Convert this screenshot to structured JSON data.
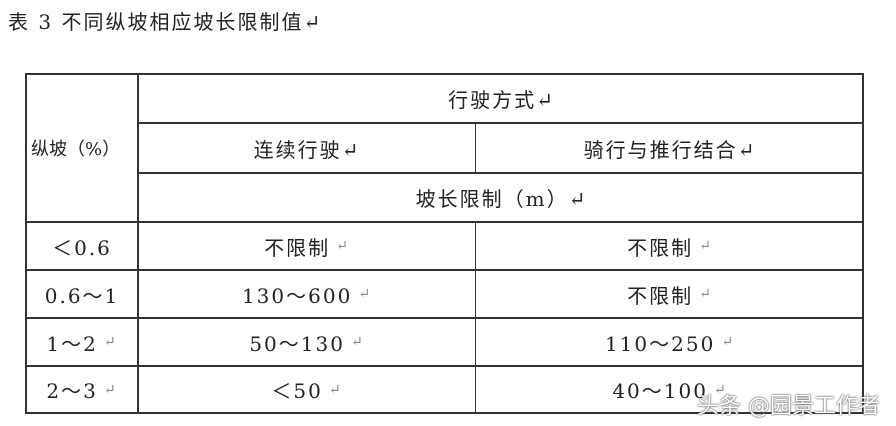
{
  "title": "表 3 不同纵坡相应坡长限制值↵",
  "header": {
    "slope": "纵坡（%）",
    "mode": "行驶方式↵",
    "continuous": "连续行驶↵",
    "mixed": "骑行与推行结合↵",
    "limit": "坡长限制（m）↵"
  },
  "rows": [
    {
      "slope": "＜0.6",
      "continuous": "不限制",
      "mixed": "不限制"
    },
    {
      "slope": "0.6～1",
      "continuous": "130～600",
      "mixed": "不限制"
    },
    {
      "slope": "1～2",
      "continuous": "50～130",
      "mixed": "110～250"
    },
    {
      "slope": "2～3",
      "continuous": "＜50",
      "mixed": "40～100"
    }
  ],
  "para_mark": "↵",
  "watermark": "头条 @园景工作者"
}
